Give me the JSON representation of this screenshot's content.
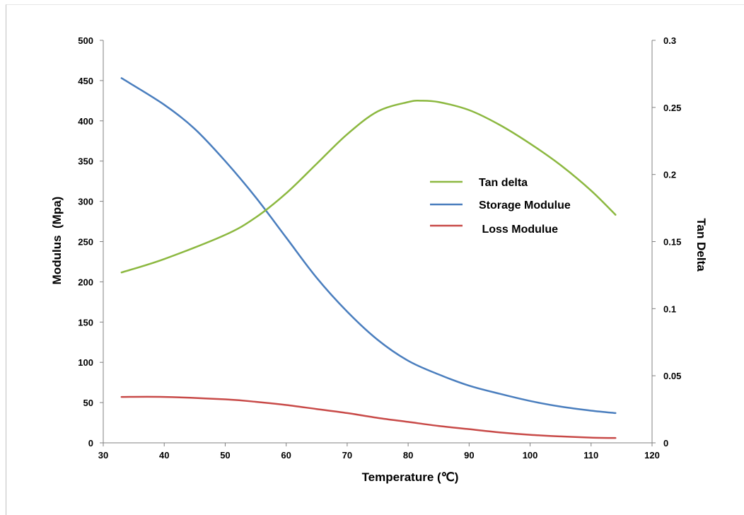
{
  "chart_data": {
    "type": "line",
    "xlabel": "Temperature (℃)",
    "ylabel": "Modulus  (Mpa)",
    "y2label": "Tan Delta",
    "xlim": [
      30,
      120
    ],
    "ylim": [
      0,
      500
    ],
    "y2lim": [
      0,
      0.3
    ],
    "x_ticks": [
      "30",
      "40",
      "50",
      "60",
      "70",
      "80",
      "90",
      "100",
      "110",
      "120"
    ],
    "y_ticks": [
      "0",
      "50",
      "100",
      "150",
      "200",
      "250",
      "300",
      "350",
      "400",
      "450",
      "500"
    ],
    "y2_ticks": [
      "0",
      "0.05",
      "0.1",
      "0.15",
      "0.2",
      "0.25",
      "0.3"
    ],
    "grid": false,
    "legend_position": "center-right",
    "series": [
      {
        "name": "Tan delta",
        "axis": "right",
        "color": "#8cb840",
        "x": [
          33,
          40,
          50,
          55,
          60,
          65,
          70,
          75,
          80,
          82,
          85,
          90,
          95,
          100,
          105,
          110,
          114
        ],
        "values": [
          0.127,
          0.137,
          0.155,
          0.168,
          0.186,
          0.208,
          0.23,
          0.247,
          0.254,
          0.255,
          0.254,
          0.248,
          0.237,
          0.223,
          0.207,
          0.188,
          0.17
        ]
      },
      {
        "name": "Storage Modulue",
        "axis": "left",
        "color": "#4a7ebe",
        "x": [
          33,
          40,
          45,
          50,
          55,
          60,
          65,
          70,
          75,
          80,
          85,
          90,
          95,
          100,
          105,
          110,
          114
        ],
        "values": [
          453,
          420,
          390,
          350,
          305,
          255,
          205,
          163,
          128,
          102,
          85,
          71,
          61,
          52,
          45,
          40,
          37
        ]
      },
      {
        "name": " Loss Modulue",
        "axis": "left",
        "color": "#c84a48",
        "x": [
          33,
          40,
          50,
          55,
          60,
          65,
          70,
          75,
          80,
          85,
          90,
          95,
          100,
          105,
          110,
          114
        ],
        "values": [
          57,
          57,
          54,
          51,
          47,
          42,
          37,
          31,
          26,
          21,
          17,
          13,
          10,
          8,
          6.5,
          6
        ]
      }
    ]
  }
}
